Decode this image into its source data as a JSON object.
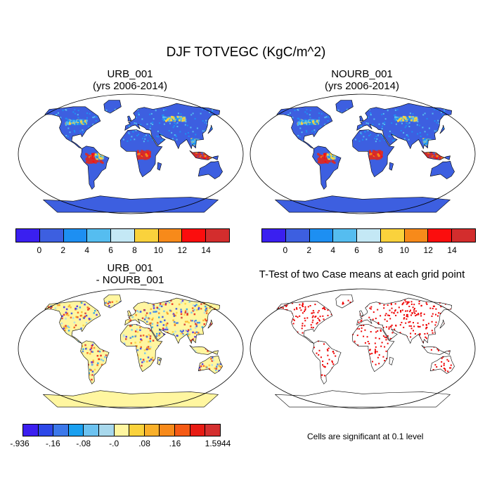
{
  "title": "DJF TOTVEGC (KgC/m^2)",
  "panels": {
    "p1": {
      "line1": "URB_001",
      "line2": "(yrs 2006-2014)"
    },
    "p2": {
      "line1": "NOURB_001",
      "line2": "(yrs 2006-2014)"
    },
    "p3": {
      "line1": "URB_001",
      "line2": "- NOURB_001"
    },
    "p4": {
      "line1": "T-Test of two Case means at each grid point"
    }
  },
  "colorbar_abs": {
    "colors": [
      "#3a1ff0",
      "#3d5fe0",
      "#1d8ff2",
      "#55bdf0",
      "#c4e8f5",
      "#fad23c",
      "#f78a1a",
      "#fb0d0d",
      "#d32d2d"
    ],
    "labels": [
      "0",
      "2",
      "4",
      "6",
      "8",
      "10",
      "12",
      "14"
    ]
  },
  "colorbar_diff": {
    "colors": [
      "#3c1ff0",
      "#2d48e8",
      "#3c78ea",
      "#1aa0f0",
      "#6cc2f0",
      "#a8d8ec",
      "#fff6a0",
      "#fad23c",
      "#f9b02a",
      "#f78a1a",
      "#f55a14",
      "#e81c14",
      "#d43030"
    ],
    "labels": [
      ".936",
      "-.16",
      "-.08",
      "-.0",
      ".08",
      ".16",
      "1.5944"
    ]
  },
  "note": "Cells are significant at 0.1 level",
  "colors": {
    "land_low": "#3d5fe0",
    "land_high": "#d32d2d",
    "diff_base": "#fff6a0",
    "sig": "#ee0000",
    "outline": "#000000"
  }
}
